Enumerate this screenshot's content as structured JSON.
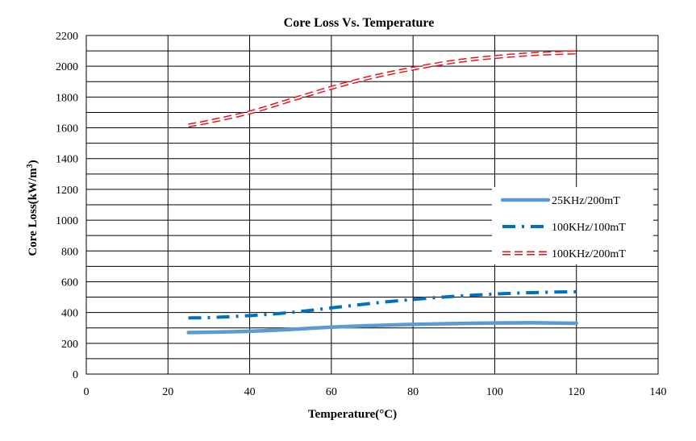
{
  "chart_data": {
    "type": "line",
    "title": "Core Loss Vs. Temperature",
    "xlabel": "Temperature(°C)",
    "ylabel_main": "Core Loss(kW/m",
    "ylabel_sup": "3",
    "ylabel_close": ")",
    "xlim": [
      0,
      140
    ],
    "ylim": [
      0,
      2200
    ],
    "x_ticks": [
      0,
      20,
      40,
      60,
      80,
      100,
      120,
      140
    ],
    "y_ticks": [
      0,
      200,
      400,
      600,
      800,
      1000,
      1200,
      1400,
      1600,
      1800,
      2000,
      2200
    ],
    "grid": true,
    "legend_position": "right",
    "series": [
      {
        "name": "25KHz/200mT",
        "color": "#5b9bd5",
        "style": "solid",
        "x": [
          25,
          30,
          40,
          50,
          60,
          70,
          80,
          90,
          100,
          110,
          120
        ],
        "y": [
          270,
          272,
          278,
          290,
          305,
          315,
          323,
          328,
          332,
          333,
          330
        ]
      },
      {
        "name": "100KHz/100mT",
        "color": "#0070c0",
        "style": "dashdot",
        "x": [
          25,
          30,
          40,
          50,
          60,
          70,
          80,
          90,
          100,
          110,
          120
        ],
        "y": [
          365,
          367,
          380,
          400,
          430,
          460,
          485,
          505,
          520,
          530,
          535
        ]
      },
      {
        "name": "100KHz/200mT",
        "color": "#e8141c",
        "style": "double-dashed",
        "x": [
          25,
          30,
          40,
          50,
          60,
          70,
          80,
          90,
          100,
          110,
          120
        ],
        "y": [
          1615,
          1640,
          1700,
          1780,
          1860,
          1930,
          1985,
          2030,
          2060,
          2080,
          2090
        ]
      }
    ]
  }
}
